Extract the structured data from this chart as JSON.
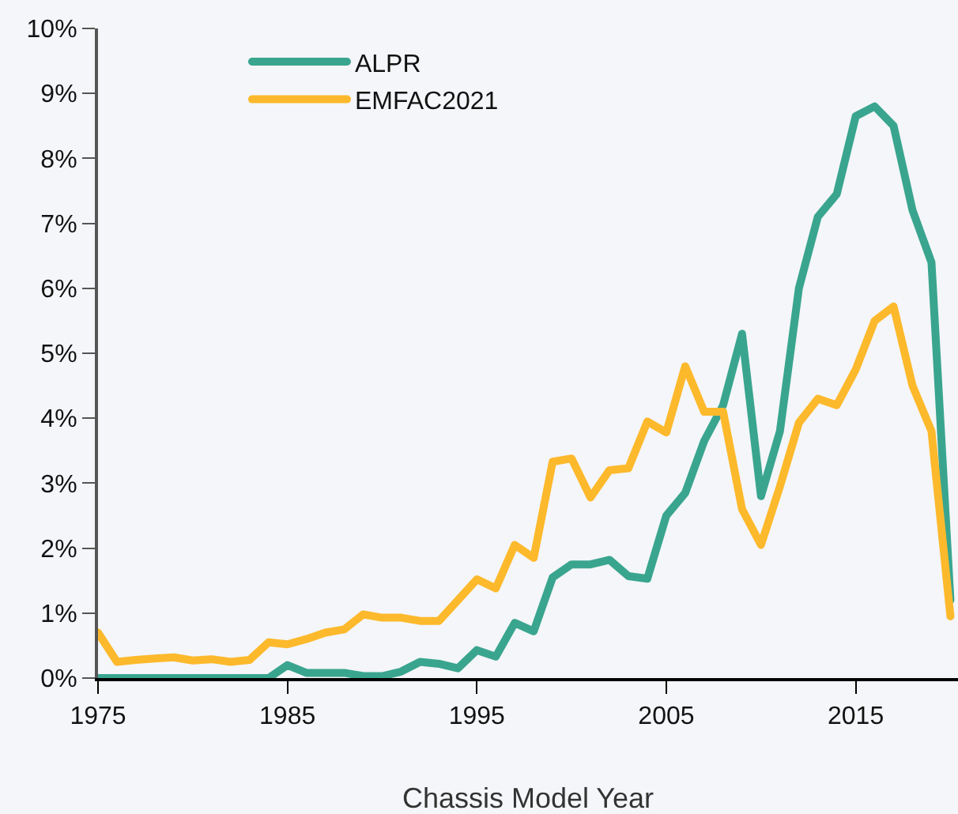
{
  "chart_data": {
    "type": "line",
    "xlabel": "Chassis Model Year",
    "x": [
      1975,
      1976,
      1977,
      1978,
      1979,
      1980,
      1981,
      1982,
      1983,
      1984,
      1985,
      1986,
      1987,
      1988,
      1989,
      1990,
      1991,
      1992,
      1993,
      1994,
      1995,
      1996,
      1997,
      1998,
      1999,
      2000,
      2001,
      2002,
      2003,
      2004,
      2005,
      2006,
      2007,
      2008,
      2009,
      2010,
      2011,
      2012,
      2013,
      2014,
      2015,
      2016,
      2017,
      2018,
      2019,
      2020
    ],
    "series": [
      {
        "name": "ALPR",
        "color": "#3aa58f",
        "values": [
          0,
          0,
          0,
          0,
          0,
          0,
          0,
          0,
          0,
          0,
          0.2,
          0.08,
          0.08,
          0.08,
          0.03,
          0.03,
          0.1,
          0.25,
          0.22,
          0.15,
          0.43,
          0.33,
          0.85,
          0.72,
          1.55,
          1.75,
          1.75,
          1.82,
          1.57,
          1.53,
          2.5,
          2.85,
          3.65,
          4.2,
          5.3,
          2.8,
          3.8,
          6.0,
          7.1,
          7.45,
          8.65,
          8.8,
          8.5,
          7.2,
          6.4,
          1.2
        ]
      },
      {
        "name": "EMFAC2021",
        "color": "#fdb92c",
        "values": [
          0.7,
          0.25,
          0.28,
          0.3,
          0.32,
          0.27,
          0.29,
          0.25,
          0.28,
          0.55,
          0.52,
          0.6,
          0.7,
          0.75,
          0.98,
          0.93,
          0.93,
          0.88,
          0.88,
          1.2,
          1.52,
          1.38,
          2.05,
          1.85,
          3.33,
          3.38,
          2.78,
          3.2,
          3.23,
          3.95,
          3.78,
          4.8,
          4.1,
          4.1,
          2.6,
          2.05,
          2.95,
          3.93,
          4.3,
          4.2,
          4.75,
          5.5,
          5.72,
          4.5,
          3.8,
          0.95
        ]
      }
    ],
    "xlim": [
      1975,
      2020.4
    ],
    "xticks": [
      1975,
      1985,
      1995,
      2005,
      2015
    ],
    "ylim": [
      0,
      10
    ],
    "yticks": [
      {
        "value": 0,
        "label": "0%"
      },
      {
        "value": 1,
        "label": "1%"
      },
      {
        "value": 2,
        "label": "2%"
      },
      {
        "value": 3,
        "label": "3%"
      },
      {
        "value": 4,
        "label": "4%"
      },
      {
        "value": 5,
        "label": "5%"
      },
      {
        "value": 6,
        "label": "6%"
      },
      {
        "value": 7,
        "label": "7%"
      },
      {
        "value": 8,
        "label": "8%"
      },
      {
        "value": 9,
        "label": "9%"
      },
      {
        "value": 10,
        "label": "10%"
      }
    ],
    "grid": false,
    "legend": "top left",
    "marker": "none",
    "line_style": "solid"
  }
}
